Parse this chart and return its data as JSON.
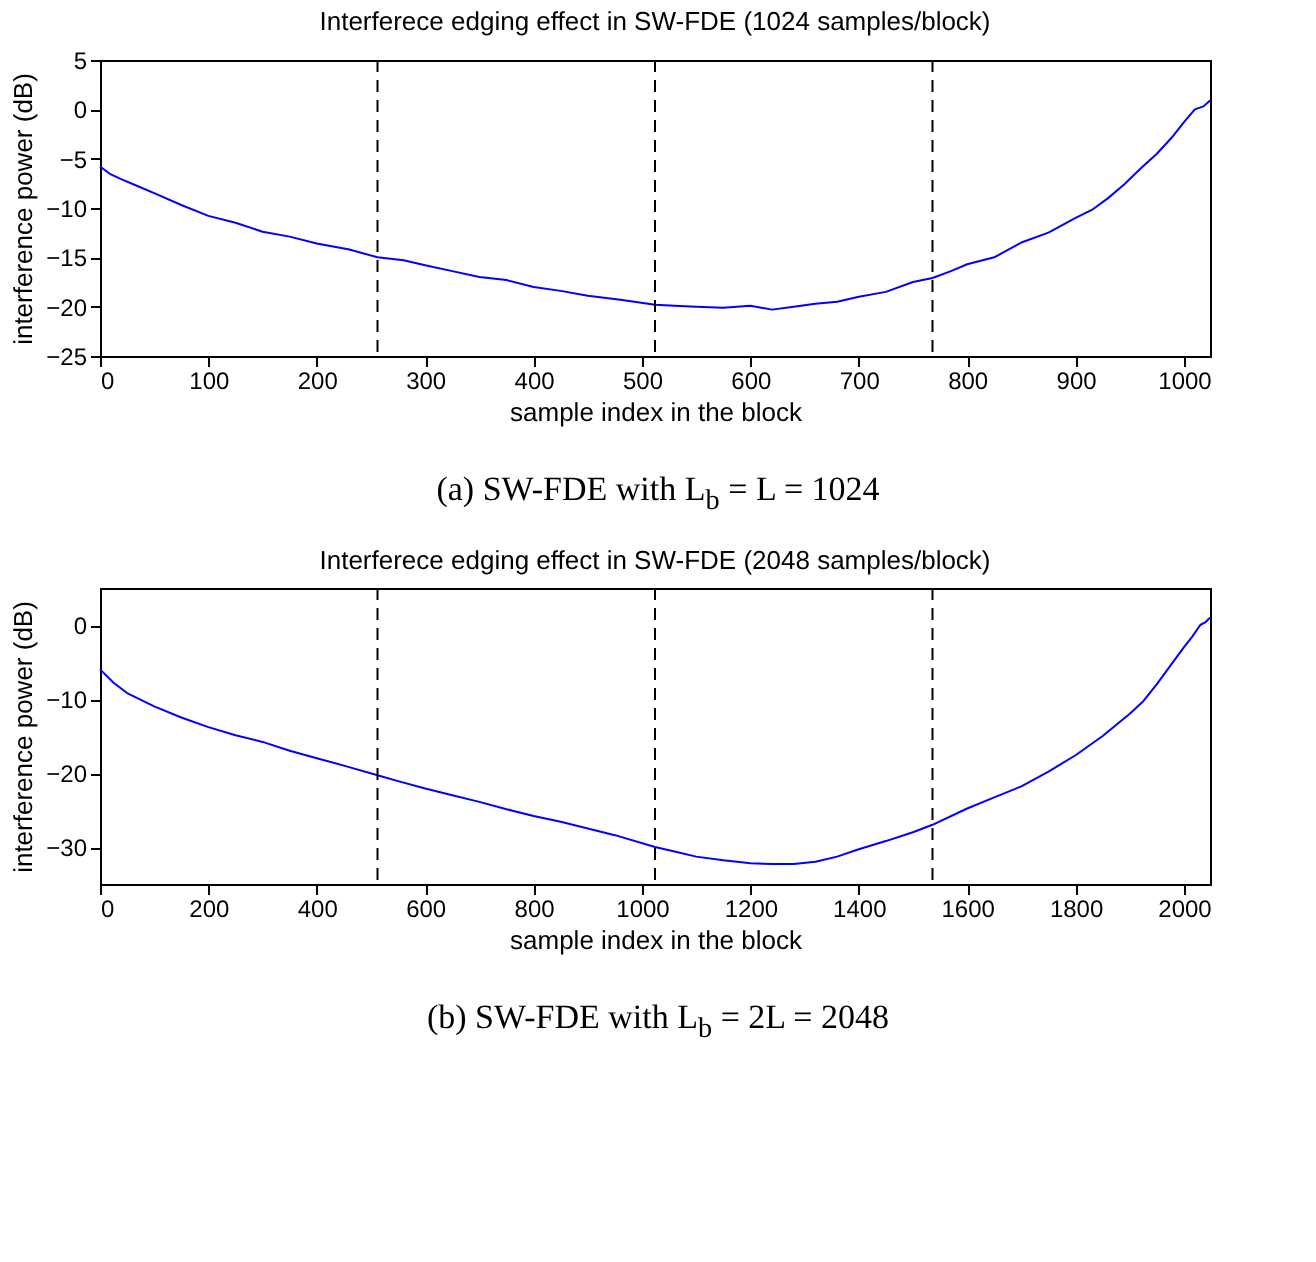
{
  "chart_data": [
    {
      "type": "line",
      "title": "Interferece edging effect in SW-FDE (1024 samples/block)",
      "xlabel": "sample index in the block",
      "ylabel": "interference power (dB)",
      "x": [
        0,
        10,
        20,
        35,
        50,
        75,
        100,
        125,
        150,
        175,
        200,
        230,
        256,
        280,
        300,
        325,
        350,
        375,
        400,
        425,
        450,
        480,
        512,
        530,
        550,
        575,
        600,
        620,
        640,
        660,
        680,
        700,
        725,
        750,
        768,
        785,
        800,
        825,
        850,
        875,
        900,
        915,
        930,
        945,
        960,
        975,
        990,
        1000,
        1010,
        1018,
        1024
      ],
      "series": [
        {
          "color": "#0000ff",
          "values": [
            -5.8,
            -6.6,
            -7.1,
            -7.8,
            -8.5,
            -9.7,
            -10.8,
            -11.5,
            -12.4,
            -12.9,
            -13.6,
            -14.2,
            -15,
            -15.3,
            -15.8,
            -16.4,
            -17,
            -17.3,
            -18,
            -18.4,
            -18.9,
            -19.3,
            -19.8,
            -19.9,
            -20,
            -20.1,
            -19.9,
            -20.3,
            -20,
            -19.7,
            -19.5,
            -19,
            -18.5,
            -17.5,
            -17.1,
            -16.4,
            -15.7,
            -15,
            -13.5,
            -12.5,
            -11,
            -10.2,
            -9,
            -7.6,
            -6,
            -4.5,
            -2.7,
            -1.3,
            0,
            0.3,
            0.9
          ]
        }
      ],
      "xlim": [
        0,
        1024
      ],
      "xticks": [
        0,
        100,
        200,
        300,
        400,
        500,
        600,
        700,
        800,
        900,
        1000
      ],
      "ylim": [
        -25,
        5
      ],
      "yticks": [
        -25,
        -20,
        -15,
        -10,
        -5,
        0,
        5
      ],
      "grid": false,
      "ref_lines": [
        {
          "axis": "x",
          "value": 256,
          "color": "#000000",
          "line_style": "dashed"
        },
        {
          "axis": "x",
          "value": 512,
          "color": "#000000",
          "line_style": "dashed"
        },
        {
          "axis": "x",
          "value": 768,
          "color": "#000000",
          "line_style": "dashed"
        }
      ],
      "annotations": [
        "(a) SW-FDE with L$_{b}$ = L = 1024"
      ]
    },
    {
      "type": "line",
      "title": "Interferece edging effect in SW-FDE (2048 samples/block)",
      "xlabel": "sample index in the block",
      "ylabel": "interference power (dB)",
      "x": [
        0,
        25,
        50,
        100,
        150,
        200,
        250,
        300,
        350,
        400,
        450,
        512,
        550,
        600,
        650,
        700,
        750,
        800,
        850,
        900,
        950,
        1024,
        1060,
        1100,
        1150,
        1200,
        1240,
        1280,
        1320,
        1360,
        1400,
        1450,
        1500,
        1536,
        1600,
        1650,
        1700,
        1750,
        1800,
        1850,
        1900,
        1925,
        1950,
        1975,
        2000,
        2015,
        2030,
        2040,
        2048
      ],
      "series": [
        {
          "color": "#0000ff",
          "values": [
            -6,
            -7.8,
            -9.2,
            -11,
            -12.5,
            -13.8,
            -14.9,
            -15.8,
            -17,
            -18,
            -19,
            -20.3,
            -21.1,
            -22.1,
            -23,
            -23.9,
            -24.9,
            -25.8,
            -26.6,
            -27.5,
            -28.4,
            -30,
            -30.6,
            -31.3,
            -31.8,
            -32.2,
            -32.3,
            -32.3,
            -32,
            -31.3,
            -30.3,
            -29.2,
            -28,
            -27,
            -24.8,
            -23.3,
            -21.8,
            -19.8,
            -17.6,
            -15,
            -12,
            -10.3,
            -8,
            -5.5,
            -3,
            -1.6,
            0,
            0.4,
            1
          ]
        }
      ],
      "xlim": [
        0,
        2048
      ],
      "xticks": [
        0,
        200,
        400,
        600,
        800,
        1000,
        1200,
        1400,
        1600,
        1800,
        2000
      ],
      "ylim": [
        -35,
        5
      ],
      "yticks": [
        -30,
        -20,
        -10,
        0
      ],
      "grid": false,
      "ref_lines": [
        {
          "axis": "x",
          "value": 512,
          "color": "#000000",
          "line_style": "dashed"
        },
        {
          "axis": "x",
          "value": 1024,
          "color": "#000000",
          "line_style": "dashed"
        },
        {
          "axis": "x",
          "value": 1536,
          "color": "#000000",
          "line_style": "dashed"
        }
      ],
      "annotations": [
        "(b) SW-FDE with L$_{b}$ = 2L = 2048"
      ]
    }
  ]
}
